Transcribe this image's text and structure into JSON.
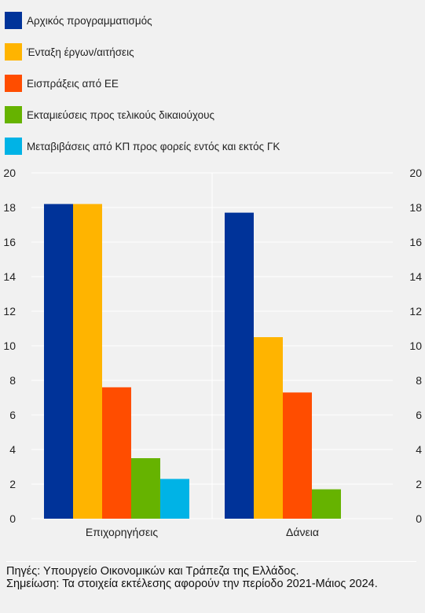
{
  "legend": {
    "items": [
      {
        "label": "Αρχικός προγραμματισμός",
        "color": "#003399"
      },
      {
        "label": "Ένταξη έργων/αιτήσεις",
        "color": "#ffb400"
      },
      {
        "label": "Εισπράξεις από ΕΕ",
        "color": "#ff4d00"
      },
      {
        "label": "Εκταμιεύσεις προς τελικούς δικαιούχους",
        "color": "#66b300"
      },
      {
        "label": "Μεταβιβάσεις από ΚΠ προς φορείς εντός και εκτός ΓΚ",
        "color": "#00b3e6"
      }
    ]
  },
  "chart_data": {
    "type": "bar",
    "categories": [
      "Επιχορηγήσεις",
      "Δάνεια"
    ],
    "series": [
      {
        "name": "Αρχικός προγραμματισμός",
        "values": [
          18.2,
          17.7
        ]
      },
      {
        "name": "Ένταξη έργων/αιτήσεις",
        "values": [
          18.2,
          10.5
        ]
      },
      {
        "name": "Εισπράξεις από ΕΕ",
        "values": [
          7.6,
          7.3
        ]
      },
      {
        "name": "Εκταμιεύσεις προς τελικούς δικαιούχους",
        "values": [
          3.5,
          1.7
        ]
      },
      {
        "name": "Μεταβιβάσεις από ΚΠ προς φορείς εντός και εκτός ΓΚ",
        "values": [
          2.3,
          null
        ]
      }
    ],
    "ylim": [
      0,
      20
    ],
    "yticks": [
      "0",
      "2",
      "4",
      "6",
      "8",
      "10",
      "12",
      "14",
      "16",
      "18",
      "20"
    ],
    "grid": true,
    "axes": "left and right",
    "legend_position": "top"
  },
  "footer": {
    "sources": "Πηγές: Υπουργείο Οικονομικών και Τράπεζα της Ελλάδος.",
    "note": "Σημείωση: Τα στοιχεία εκτέλεσης αφορούν την περίοδο 2021-Μάιος 2024."
  }
}
